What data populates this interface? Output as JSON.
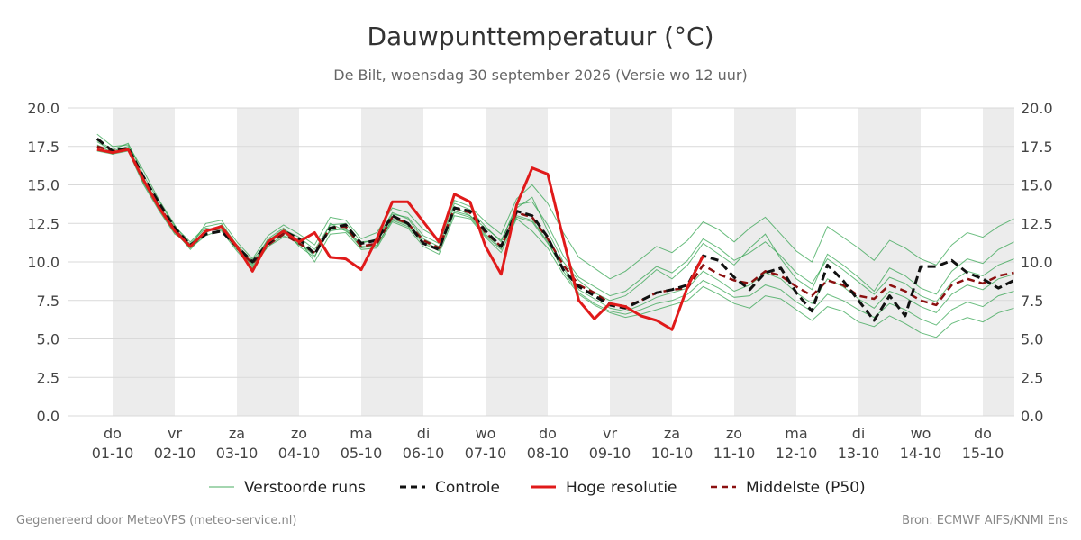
{
  "colors": {
    "ensemble": "#1a9a3a",
    "control": "#111111",
    "hires": "#e01a1a",
    "median": "#8b1010",
    "weekend_band": "#ececec",
    "grid": "#d9d9d9"
  },
  "footer": {
    "left": "Gegenereerd door MeteoVPS (meteo-service.nl)",
    "right": "Bron: ECMWF AIFS/KNMI Ens"
  },
  "chart_data": {
    "type": "line",
    "title": "Dauwpunttemperatuur (°C)",
    "subtitle": "De Bilt, woensdag 30 september 2026 (Versie wo 12 uur)",
    "ylim": [
      0,
      20
    ],
    "yticks": [
      "0.0",
      "2.5",
      "5.0",
      "7.5",
      "10.0",
      "12.5",
      "15.0",
      "17.5",
      "20.0"
    ],
    "xlim": [
      -0.25,
      14.5
    ],
    "grid": true,
    "legend_position": "bottom",
    "x_ticks": [
      {
        "day": "do",
        "date": "01-10"
      },
      {
        "day": "vr",
        "date": "02-10"
      },
      {
        "day": "za",
        "date": "03-10"
      },
      {
        "day": "zo",
        "date": "04-10"
      },
      {
        "day": "ma",
        "date": "05-10"
      },
      {
        "day": "di",
        "date": "06-10"
      },
      {
        "day": "wo",
        "date": "07-10"
      },
      {
        "day": "do",
        "date": "08-10"
      },
      {
        "day": "vr",
        "date": "09-10"
      },
      {
        "day": "za",
        "date": "10-10"
      },
      {
        "day": "zo",
        "date": "11-10"
      },
      {
        "day": "ma",
        "date": "12-10"
      },
      {
        "day": "di",
        "date": "13-10"
      },
      {
        "day": "wo",
        "date": "14-10"
      },
      {
        "day": "do",
        "date": "15-10"
      }
    ],
    "shaded_days": [
      0,
      2,
      4,
      6,
      8,
      10,
      12,
      14
    ],
    "legend": [
      {
        "key": "ensemble",
        "label": "Verstoorde runs"
      },
      {
        "key": "control",
        "label": "Controle"
      },
      {
        "key": "hires",
        "label": "Hoge resolutie"
      },
      {
        "key": "median",
        "label": "Middelste (P50)"
      }
    ],
    "series": [
      {
        "name": "Hoge resolutie",
        "key": "hires",
        "x": [
          -0.25,
          0,
          0.25,
          0.5,
          0.75,
          1,
          1.25,
          1.5,
          1.75,
          2,
          2.25,
          2.5,
          2.75,
          3,
          3.25,
          3.5,
          3.75,
          4,
          4.25,
          4.5,
          4.75,
          5,
          5.25,
          5.5,
          5.75,
          6,
          6.25,
          6.5,
          6.75,
          7,
          7.25,
          7.5,
          7.75,
          8,
          8.25,
          8.5,
          8.75,
          9,
          9.25,
          9.5
        ],
        "y": [
          17.3,
          17.1,
          17.3,
          15.3,
          13.5,
          12.0,
          11.0,
          12.0,
          12.3,
          11.0,
          9.4,
          11.3,
          12.0,
          11.3,
          11.9,
          10.3,
          10.2,
          9.5,
          11.5,
          13.9,
          13.9,
          12.6,
          11.3,
          14.4,
          13.9,
          11.0,
          9.2,
          13.7,
          16.1,
          15.7,
          11.5,
          7.5,
          6.3,
          7.3,
          7.1,
          6.5,
          6.2,
          5.6,
          8.4,
          10.4
        ]
      },
      {
        "name": "Controle",
        "key": "control",
        "x": [
          -0.25,
          0,
          0.25,
          0.5,
          0.75,
          1,
          1.25,
          1.5,
          1.75,
          2,
          2.25,
          2.5,
          2.75,
          3,
          3.25,
          3.5,
          3.75,
          4,
          4.25,
          4.5,
          4.75,
          5,
          5.25,
          5.5,
          5.75,
          6,
          6.25,
          6.5,
          6.75,
          7,
          7.25,
          7.5,
          7.75,
          8,
          8.25,
          8.5,
          8.75,
          9,
          9.25,
          9.5,
          9.75,
          10,
          10.25,
          10.5,
          10.75,
          11,
          11.25,
          11.5,
          11.75,
          12,
          12.25,
          12.5,
          12.75,
          13,
          13.25,
          13.5,
          13.75,
          14,
          14.25,
          14.5
        ],
        "y": [
          18.0,
          17.2,
          17.4,
          15.5,
          13.8,
          12.2,
          11.1,
          11.8,
          12.0,
          11.0,
          10.0,
          11.2,
          12.0,
          11.5,
          10.5,
          12.2,
          12.4,
          11.2,
          11.4,
          13.0,
          12.5,
          11.2,
          10.8,
          13.5,
          13.3,
          12.0,
          11.0,
          13.3,
          13.0,
          11.6,
          9.5,
          8.4,
          7.8,
          7.2,
          7.0,
          7.5,
          8.0,
          8.2,
          8.5,
          10.4,
          10.1,
          9.0,
          8.2,
          9.3,
          9.6,
          8.0,
          6.8,
          9.8,
          8.8,
          7.5,
          6.2,
          7.8,
          6.5,
          9.7,
          9.7,
          10.1,
          9.3,
          8.9,
          8.3,
          8.8
        ]
      },
      {
        "name": "Middelste (P50)",
        "key": "median",
        "x": [
          -0.25,
          0,
          0.25,
          0.5,
          0.75,
          1,
          1.25,
          1.5,
          1.75,
          2,
          2.25,
          2.5,
          2.75,
          3,
          3.25,
          3.5,
          3.75,
          4,
          4.25,
          4.5,
          4.75,
          5,
          5.25,
          5.5,
          5.75,
          6,
          6.25,
          6.5,
          6.75,
          7,
          7.25,
          7.5,
          7.75,
          8,
          8.25,
          8.5,
          8.75,
          9,
          9.25,
          9.5,
          9.75,
          10,
          10.25,
          10.5,
          10.75,
          11,
          11.25,
          11.5,
          11.75,
          12,
          12.25,
          12.5,
          12.75,
          13,
          13.25,
          13.5,
          13.75,
          14,
          14.25,
          14.5
        ],
        "y": [
          17.5,
          17.2,
          17.3,
          15.3,
          13.6,
          12.1,
          11.0,
          12.0,
          12.2,
          10.9,
          9.9,
          11.1,
          11.8,
          11.2,
          10.6,
          12.2,
          12.3,
          11.0,
          11.2,
          12.9,
          12.5,
          11.4,
          10.9,
          13.5,
          13.2,
          11.9,
          11.0,
          13.2,
          12.9,
          11.5,
          9.8,
          8.5,
          8.0,
          7.3,
          7.1,
          7.5,
          8.0,
          8.2,
          8.3,
          9.8,
          9.2,
          8.8,
          8.6,
          9.4,
          9.1,
          8.4,
          7.8,
          8.8,
          8.5,
          7.8,
          7.6,
          8.5,
          8.1,
          7.5,
          7.2,
          8.5,
          8.9,
          8.6,
          9.1,
          9.3
        ]
      }
    ],
    "ensemble": {
      "name": "Verstoorde runs",
      "x": [
        -0.25,
        0,
        0.25,
        0.5,
        0.75,
        1,
        1.25,
        1.5,
        1.75,
        2,
        2.25,
        2.5,
        2.75,
        3,
        3.25,
        3.5,
        3.75,
        4,
        4.25,
        4.5,
        4.75,
        5,
        5.25,
        5.5,
        5.75,
        6,
        6.25,
        6.5,
        6.75,
        7,
        7.25,
        7.5,
        7.75,
        8,
        8.25,
        8.5,
        8.75,
        9,
        9.25,
        9.5,
        9.75,
        10,
        10.25,
        10.5,
        10.75,
        11,
        11.25,
        11.5,
        11.75,
        12,
        12.25,
        12.5,
        12.75,
        13,
        13.25,
        13.5,
        13.75,
        14,
        14.25,
        14.5
      ],
      "members": [
        [
          17.8,
          17.2,
          17.5,
          15.4,
          13.7,
          12.0,
          10.8,
          11.9,
          12.4,
          11.0,
          9.8,
          11.5,
          12.2,
          11.0,
          10.3,
          12.5,
          12.0,
          11.2,
          11.5,
          13.2,
          12.8,
          11.5,
          11.0,
          13.6,
          13.0,
          12.2,
          11.4,
          13.5,
          14.2,
          12.0,
          10.0,
          8.8,
          8.0,
          7.5,
          7.8,
          8.6,
          9.5,
          8.9,
          9.8,
          11.2,
          10.5,
          9.8,
          10.9,
          11.8,
          10.2,
          8.9,
          8.2,
          10.5,
          9.8,
          9.0,
          8.1,
          9.6,
          9.1,
          8.3,
          7.9,
          9.4,
          10.2,
          9.9,
          10.8,
          11.3
        ],
        [
          17.2,
          17.0,
          17.2,
          15.0,
          13.3,
          11.8,
          11.2,
          12.2,
          12.0,
          10.7,
          9.6,
          11.0,
          11.6,
          11.4,
          10.0,
          11.8,
          11.9,
          10.8,
          10.9,
          12.6,
          12.2,
          11.0,
          10.5,
          13.0,
          12.8,
          11.6,
          10.6,
          12.8,
          12.0,
          10.9,
          9.2,
          7.9,
          7.2,
          6.7,
          6.4,
          6.6,
          6.9,
          7.2,
          7.5,
          8.4,
          7.9,
          7.3,
          7.0,
          7.8,
          7.6,
          6.9,
          6.2,
          7.1,
          6.8,
          6.1,
          5.8,
          6.5,
          6.0,
          5.4,
          5.1,
          6.0,
          6.4,
          6.1,
          6.7,
          7.0
        ],
        [
          18.3,
          17.5,
          17.6,
          15.9,
          14.0,
          12.4,
          11.0,
          12.5,
          12.7,
          11.3,
          10.2,
          11.7,
          12.4,
          11.8,
          11.1,
          12.9,
          12.7,
          11.5,
          11.9,
          13.5,
          13.2,
          12.1,
          11.5,
          14.0,
          13.6,
          12.6,
          11.8,
          14.1,
          15.0,
          13.8,
          11.9,
          10.3,
          9.6,
          8.9,
          9.4,
          10.2,
          11.0,
          10.6,
          11.4,
          12.6,
          12.1,
          11.3,
          12.2,
          12.9,
          11.8,
          10.7,
          10.0,
          12.3,
          11.6,
          10.9,
          10.1,
          11.4,
          10.9,
          10.2,
          9.8,
          11.1,
          11.9,
          11.6,
          12.3,
          12.8
        ],
        [
          17.6,
          17.1,
          17.3,
          15.1,
          13.4,
          11.9,
          10.9,
          11.7,
          12.1,
          10.8,
          9.9,
          11.2,
          11.9,
          11.1,
          10.6,
          12.0,
          12.2,
          11.0,
          11.0,
          12.8,
          12.4,
          11.3,
          10.8,
          13.3,
          13.0,
          11.8,
          10.9,
          12.9,
          12.6,
          11.2,
          9.6,
          8.2,
          7.6,
          7.0,
          6.8,
          7.2,
          7.7,
          8.0,
          8.3,
          9.4,
          8.8,
          8.1,
          8.5,
          9.3,
          8.9,
          8.0,
          7.3,
          8.9,
          8.4,
          7.6,
          7.0,
          8.1,
          7.7,
          7.1,
          6.7,
          7.9,
          8.5,
          8.2,
          8.9,
          9.2
        ],
        [
          17.9,
          17.3,
          17.7,
          15.6,
          13.9,
          12.3,
          11.3,
          12.3,
          12.5,
          11.1,
          10.1,
          11.4,
          12.1,
          11.6,
          10.8,
          12.4,
          12.5,
          11.3,
          11.4,
          13.1,
          12.9,
          11.7,
          11.2,
          13.8,
          13.4,
          12.3,
          11.3,
          13.7,
          13.9,
          12.4,
          10.4,
          9.0,
          8.4,
          7.8,
          8.1,
          8.9,
          9.7,
          9.3,
          10.1,
          11.5,
          10.9,
          10.1,
          10.6,
          11.3,
          10.4,
          9.3,
          8.6,
          10.2,
          9.5,
          8.7,
          7.9,
          9.0,
          8.6,
          7.8,
          7.4,
          8.7,
          9.4,
          9.1,
          9.8,
          10.2
        ],
        [
          17.4,
          17.0,
          17.4,
          15.2,
          13.5,
          12.0,
          11.1,
          12.0,
          12.3,
          10.9,
          9.7,
          11.1,
          11.7,
          11.2,
          10.4,
          12.1,
          12.1,
          10.9,
          11.1,
          12.7,
          12.3,
          11.2,
          10.7,
          13.2,
          12.9,
          11.7,
          10.8,
          13.0,
          12.7,
          11.3,
          9.4,
          8.0,
          7.3,
          6.8,
          6.6,
          6.9,
          7.3,
          7.5,
          7.9,
          8.8,
          8.3,
          7.7,
          7.8,
          8.5,
          8.2,
          7.4,
          6.8,
          7.9,
          7.5,
          6.9,
          6.4,
          7.3,
          6.9,
          6.3,
          5.9,
          6.9,
          7.4,
          7.1,
          7.8,
          8.1
        ]
      ]
    }
  }
}
